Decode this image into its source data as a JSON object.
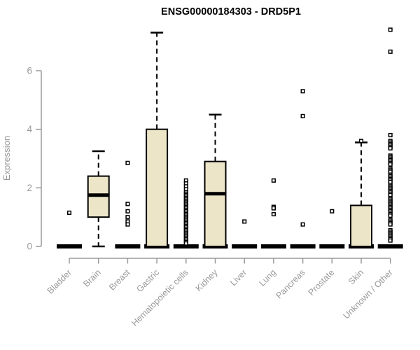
{
  "chart_data": {
    "type": "box",
    "title": "ENSG00000184303 - DRD5P1",
    "ylabel": "Expression",
    "xlabel": "",
    "ylim": [
      0,
      7.6
    ],
    "yticks": [
      0,
      2,
      4,
      6
    ],
    "grid": false,
    "legend": false,
    "colors": {
      "box_fill": "#ECE5C8",
      "box_stroke": "#000000",
      "axis": "#9A9A9A",
      "title": "#000000",
      "outlier_fill": "#FFFFFF"
    },
    "categories": [
      {
        "name": "Bladder",
        "zero_bar": true,
        "box": null,
        "outliers": [
          1.15
        ]
      },
      {
        "name": "Brain",
        "zero_bar": false,
        "box": {
          "whisker_low": 0,
          "q1": 1.0,
          "median": 1.75,
          "q3": 2.4,
          "whisker_high": 3.25
        },
        "outliers": []
      },
      {
        "name": "Breast",
        "zero_bar": true,
        "box": null,
        "outliers": [
          2.85,
          1.45,
          1.2,
          1.0,
          0.85,
          0.75
        ]
      },
      {
        "name": "Gastric",
        "zero_bar": true,
        "box": {
          "whisker_low": 0,
          "q1": 0,
          "median": 0,
          "q3": 4.0,
          "whisker_high": 7.3
        },
        "outliers": []
      },
      {
        "name": "Hematopoietic cells",
        "zero_bar": true,
        "box": null,
        "outliers": [
          2.25,
          2.15,
          2.05,
          1.95,
          1.85,
          1.8,
          1.75,
          1.7,
          1.65,
          1.6,
          1.55,
          1.5,
          1.45,
          1.4,
          1.35,
          1.3,
          1.25,
          1.2,
          1.15,
          1.1,
          1.05,
          1.0,
          0.95,
          0.9,
          0.85,
          0.8,
          0.75,
          0.7,
          0.65,
          0.6,
          0.55,
          0.5,
          0.45,
          0.4,
          0.35,
          0.3,
          0.25,
          0.2,
          0.15,
          0.1
        ]
      },
      {
        "name": "Kidney",
        "zero_bar": true,
        "box": {
          "whisker_low": 0,
          "q1": 0,
          "median": 1.8,
          "q3": 2.9,
          "whisker_high": 4.5
        },
        "outliers": []
      },
      {
        "name": "Liver",
        "zero_bar": true,
        "box": null,
        "outliers": [
          0.85
        ]
      },
      {
        "name": "Lung",
        "zero_bar": true,
        "box": null,
        "outliers": [
          2.25,
          1.35,
          1.3,
          1.1
        ]
      },
      {
        "name": "Pancreas",
        "zero_bar": true,
        "box": null,
        "outliers": [
          5.3,
          4.45,
          0.75
        ]
      },
      {
        "name": "Prostate",
        "zero_bar": true,
        "box": null,
        "outliers": [
          1.2
        ]
      },
      {
        "name": "Skin",
        "zero_bar": true,
        "box": {
          "whisker_low": 0,
          "q1": 0,
          "median": 0,
          "q3": 1.4,
          "whisker_high": 3.55
        },
        "outliers": [
          3.6
        ]
      },
      {
        "name": "Unknown / Other",
        "zero_bar": true,
        "box": null,
        "outliers": [
          7.4,
          6.65,
          3.8,
          3.6,
          3.55,
          3.5,
          3.45,
          3.4,
          3.35,
          3.1,
          3.05,
          3.0,
          2.95,
          2.9,
          2.85,
          2.8,
          2.65,
          2.6,
          2.55,
          2.45,
          2.4,
          2.35,
          2.3,
          2.25,
          2.2,
          2.1,
          2.05,
          2.0,
          1.95,
          1.9,
          1.85,
          1.8,
          1.75,
          1.65,
          1.6,
          1.55,
          1.5,
          1.45,
          1.4,
          1.35,
          1.3,
          1.25,
          1.2,
          1.15,
          1.1,
          1.05,
          0.9,
          0.85,
          0.8,
          0.75,
          0.55,
          0.5,
          0.45,
          0.4,
          0.35,
          0.3,
          0.25,
          0.2
        ]
      }
    ]
  }
}
